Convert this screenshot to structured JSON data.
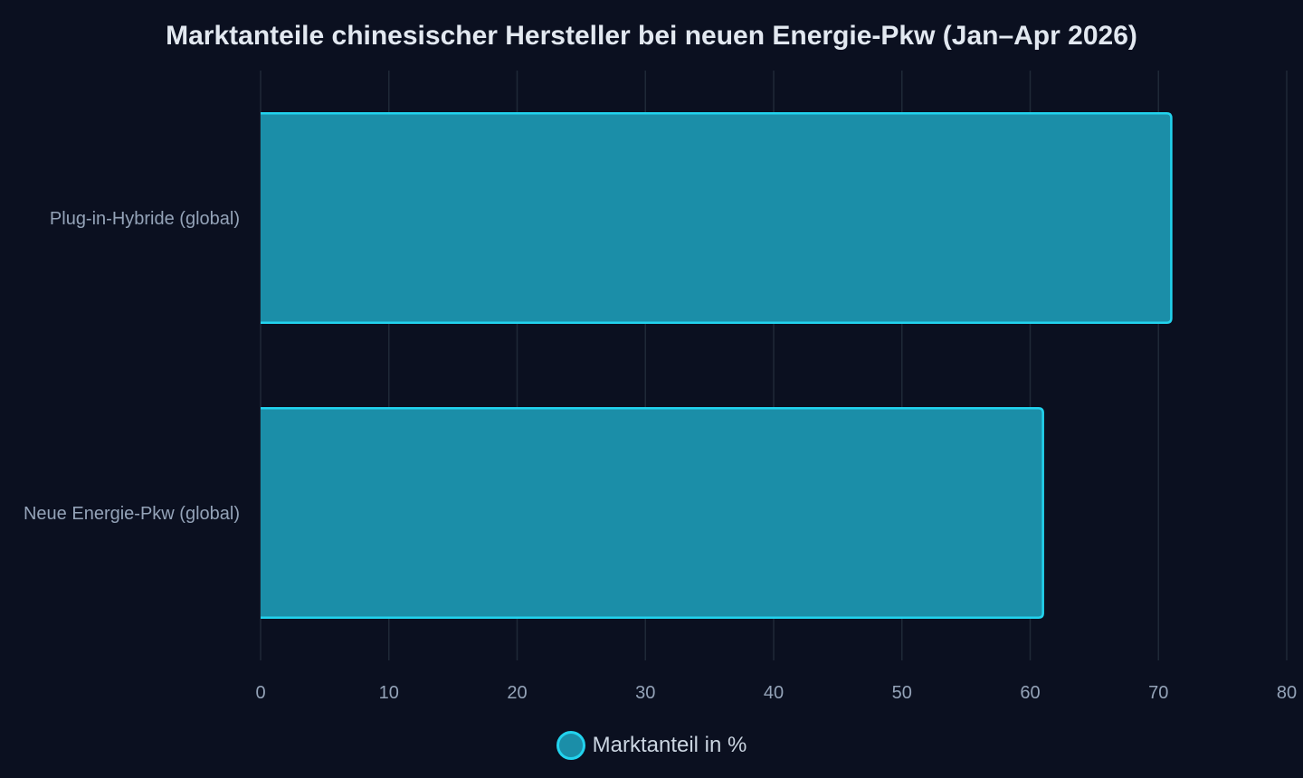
{
  "chart_data": {
    "type": "bar",
    "orientation": "horizontal",
    "title": "Marktanteile chinesischer Hersteller bei neuen Energie-Pkw (Jan–Apr 2026)",
    "categories": [
      "Plug-in-Hybride (global)",
      "Neue Energie-Pkw (global)"
    ],
    "series": [
      {
        "name": "Marktanteil in %",
        "values": [
          71,
          61
        ]
      }
    ],
    "xlim": [
      0,
      80
    ],
    "xticks": [
      0,
      10,
      20,
      30,
      40,
      50,
      60,
      70,
      80
    ],
    "grid": true,
    "legend_position": "bottom",
    "colors": {
      "background": "#0b1020",
      "bar_fill": "#1b8ea8",
      "bar_stroke": "#22d3ee",
      "grid": "#1f2937",
      "tick_text": "#94a3b8",
      "title_text": "#e2e8f0",
      "legend_text": "#cbd5e1"
    }
  }
}
